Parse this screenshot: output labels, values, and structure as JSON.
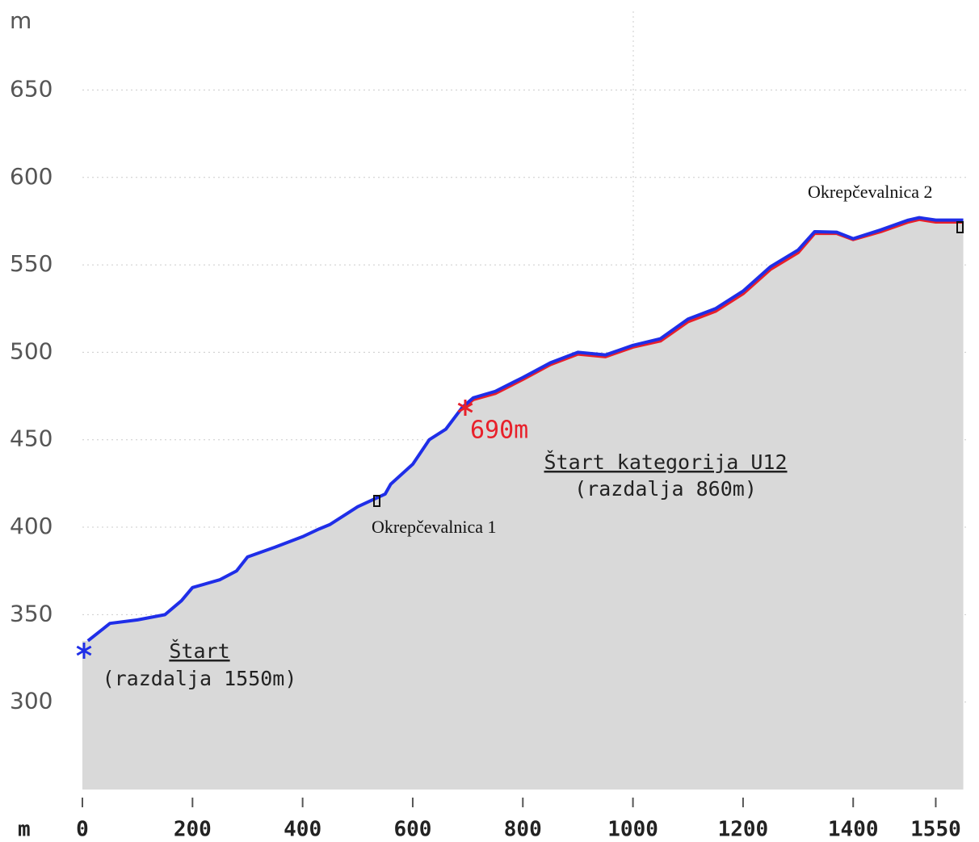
{
  "chart_data": {
    "type": "line",
    "ylabel": "m",
    "xlabel": "m",
    "x": [
      10,
      50,
      100,
      150,
      180,
      200,
      250,
      280,
      300,
      350,
      400,
      430,
      450,
      500,
      550,
      560,
      600,
      630,
      660,
      690,
      710,
      750,
      800,
      850,
      900,
      950,
      1000,
      1050,
      1100,
      1150,
      1200,
      1250,
      1300,
      1330,
      1370,
      1400,
      1450,
      1500,
      1520,
      1550,
      1600
    ],
    "series": [
      {
        "color": "#1f2ee8",
        "values": [
          335,
          345,
          347,
          350,
          358,
          365.5,
          370,
          375,
          383,
          388.6,
          394.6,
          399,
          401.6,
          411.7,
          419,
          424.6,
          436,
          450,
          456,
          468.5,
          474,
          477.7,
          485.6,
          494,
          500,
          498.5,
          504,
          507.8,
          519,
          525,
          535,
          549,
          558.5,
          569,
          568.7,
          565,
          570,
          575.6,
          577,
          575.6,
          575.6
        ]
      },
      {
        "color": "#e8202a",
        "values": [
          null,
          null,
          null,
          null,
          null,
          null,
          null,
          null,
          null,
          null,
          null,
          null,
          null,
          null,
          null,
          null,
          null,
          null,
          null,
          468,
          473,
          476.5,
          484.5,
          493,
          499,
          497.5,
          503,
          506.5,
          517.5,
          523.5,
          533.5,
          547.5,
          557,
          568,
          568,
          564.5,
          569,
          574.5,
          576,
          574.5,
          574.5
        ]
      }
    ],
    "fill": "#d9d9d9",
    "xlim": [
      0,
      1608
    ],
    "ylim": [
      250,
      695
    ],
    "xticks": [
      0,
      200,
      400,
      600,
      800,
      1000,
      1200,
      1400,
      1550
    ],
    "yticks": [
      300,
      350,
      400,
      450,
      500,
      550,
      600,
      650
    ],
    "grid": true,
    "annotations": [
      "Štart",
      "(razdalja 1550m)",
      "690m",
      "Štart kategorija U12",
      "(razdalja 860m)",
      "Okrepčevalnica 1",
      "Okrepčevalnica 2"
    ]
  }
}
